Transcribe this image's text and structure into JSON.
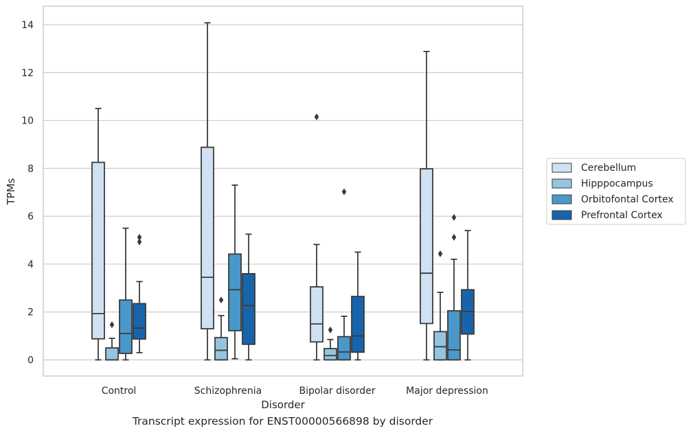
{
  "caption": "Transcript expression for ENST00000566898 by disorder",
  "colors": {
    "Cerebellum": "#d0e1f2",
    "Hipppocampus": "#94c4df",
    "Orbitofontal Cortex": "#4a98c9",
    "Prefrontal Cortex": "#1764ab",
    "line": "#3a3a3a",
    "grid": "#cccccc",
    "frame": "#cccccc"
  },
  "chart_data": {
    "type": "boxplot",
    "xlabel": "Disorder",
    "ylabel": "TPMs",
    "ylim": [
      -0.7,
      14.8
    ],
    "yticks": [
      0,
      2,
      4,
      6,
      8,
      10,
      12,
      14
    ],
    "grid": true,
    "legend_position": "right",
    "categories": [
      "Control",
      "Schizophrenia",
      "Bipolar disorder",
      "Major depression"
    ],
    "series": [
      {
        "name": "Cerebellum",
        "boxes": [
          {
            "min": 0.0,
            "q1": 0.88,
            "median": 1.93,
            "q3": 8.25,
            "max": 10.5,
            "outliers": []
          },
          {
            "min": 0.0,
            "q1": 1.3,
            "median": 3.45,
            "q3": 8.88,
            "max": 14.08,
            "outliers": []
          },
          {
            "min": 0.0,
            "q1": 0.75,
            "median": 1.5,
            "q3": 3.05,
            "max": 4.82,
            "outliers": [
              10.15
            ]
          },
          {
            "min": 0.0,
            "q1": 1.52,
            "median": 3.62,
            "q3": 7.98,
            "max": 12.88,
            "outliers": []
          }
        ]
      },
      {
        "name": "Hipppocampus",
        "boxes": [
          {
            "min": 0.0,
            "q1": 0.0,
            "median": 0.0,
            "q3": 0.5,
            "max": 0.9,
            "outliers": [
              1.47
            ]
          },
          {
            "min": 0.0,
            "q1": 0.0,
            "median": 0.4,
            "q3": 0.93,
            "max": 1.85,
            "outliers": [
              2.5
            ]
          },
          {
            "min": 0.0,
            "q1": 0.0,
            "median": 0.18,
            "q3": 0.47,
            "max": 0.85,
            "outliers": [
              1.25
            ]
          },
          {
            "min": 0.0,
            "q1": 0.0,
            "median": 0.55,
            "q3": 1.18,
            "max": 2.82,
            "outliers": [
              4.43
            ]
          }
        ]
      },
      {
        "name": "Orbitofontal Cortex",
        "boxes": [
          {
            "min": 0.0,
            "q1": 0.27,
            "median": 1.1,
            "q3": 2.5,
            "max": 5.5,
            "outliers": []
          },
          {
            "min": 0.05,
            "q1": 1.22,
            "median": 2.93,
            "q3": 4.42,
            "max": 7.3,
            "outliers": []
          },
          {
            "min": 0.0,
            "q1": 0.0,
            "median": 0.33,
            "q3": 0.97,
            "max": 1.82,
            "outliers": [
              7.02
            ]
          },
          {
            "min": 0.0,
            "q1": 0.0,
            "median": 0.42,
            "q3": 2.05,
            "max": 4.2,
            "outliers": [
              5.12,
              5.95
            ]
          }
        ]
      },
      {
        "name": "Prefrontal Cortex",
        "boxes": [
          {
            "min": 0.3,
            "q1": 0.87,
            "median": 1.33,
            "q3": 2.35,
            "max": 3.27,
            "outliers": [
              4.93,
              5.12
            ]
          },
          {
            "min": 0.0,
            "q1": 0.65,
            "median": 2.27,
            "q3": 3.6,
            "max": 5.25,
            "outliers": []
          },
          {
            "min": 0.0,
            "q1": 0.32,
            "median": 1.0,
            "q3": 2.65,
            "max": 4.5,
            "outliers": []
          },
          {
            "min": 0.0,
            "q1": 1.08,
            "median": 2.02,
            "q3": 2.93,
            "max": 5.4,
            "outliers": []
          }
        ]
      }
    ]
  }
}
